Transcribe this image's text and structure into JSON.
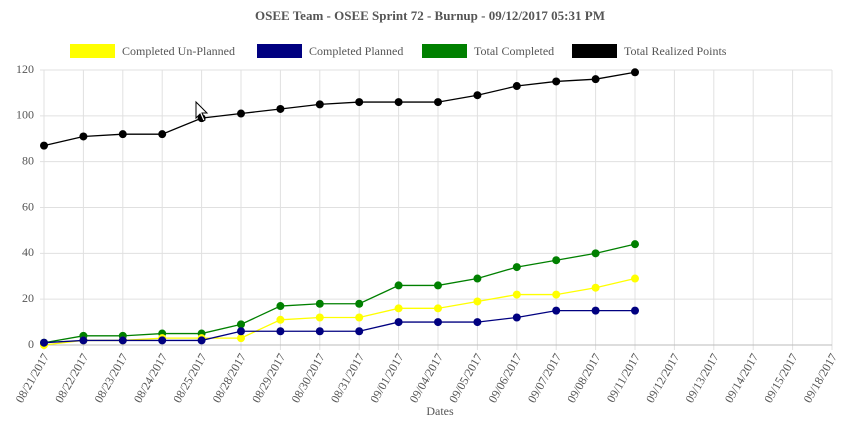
{
  "chart_data": {
    "type": "line",
    "title": "OSEE Team - OSEE Sprint 72 - Burnup - 09/12/2017 05:31 PM",
    "x_label": "Dates",
    "categories": [
      "08/21/2017",
      "08/22/2017",
      "08/23/2017",
      "08/24/2017",
      "08/25/2017",
      "08/28/2017",
      "08/29/2017",
      "08/30/2017",
      "08/31/2017",
      "09/01/2017",
      "09/04/2017",
      "09/05/2017",
      "09/06/2017",
      "09/07/2017",
      "09/08/2017",
      "09/11/2017",
      "09/12/2017",
      "09/13/2017",
      "09/14/2017",
      "09/15/2017",
      "09/18/2017"
    ],
    "series": [
      {
        "name": "Completed Un-Planned",
        "color": "#ffff00",
        "values": [
          0,
          2,
          2,
          3,
          3,
          3,
          11,
          12,
          12,
          16,
          16,
          19,
          22,
          22,
          25,
          29,
          null,
          null,
          null,
          null,
          null
        ]
      },
      {
        "name": "Completed Planned",
        "color": "#000080",
        "values": [
          1,
          2,
          2,
          2,
          2,
          6,
          6,
          6,
          6,
          10,
          10,
          10,
          12,
          15,
          15,
          15,
          null,
          null,
          null,
          null,
          null
        ]
      },
      {
        "name": "Total Completed",
        "color": "#008000",
        "values": [
          1,
          4,
          4,
          5,
          5,
          9,
          17,
          18,
          18,
          26,
          26,
          29,
          34,
          37,
          40,
          44,
          null,
          null,
          null,
          null,
          null
        ]
      },
      {
        "name": "Total Realized Points",
        "color": "#000000",
        "values": [
          87,
          91,
          92,
          92,
          99,
          101,
          103,
          105,
          106,
          106,
          106,
          109,
          113,
          115,
          116,
          119,
          null,
          null,
          null,
          null,
          null
        ]
      }
    ],
    "ylim": [
      0,
      120
    ],
    "yticks": [
      0,
      20,
      40,
      60,
      80,
      100,
      120
    ],
    "grid": true,
    "legend": "top"
  }
}
